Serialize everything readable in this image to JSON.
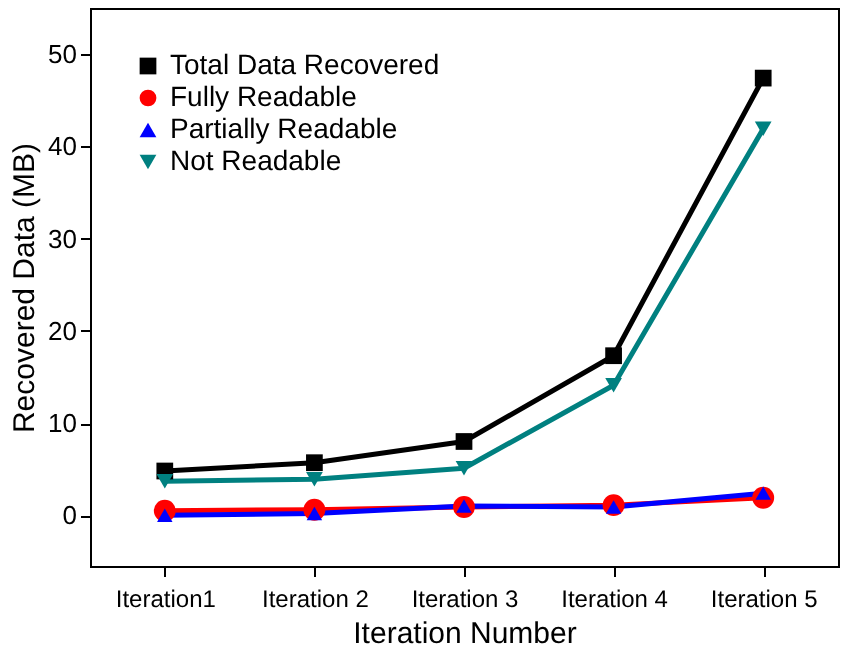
{
  "chart_data": {
    "type": "line",
    "xlabel": "Iteration Number",
    "ylabel": "Recovered Data (MB)",
    "categories": [
      "Iteration1",
      "Iteration 2",
      "Iteration 3",
      "Iteration 4",
      "Iteration 5"
    ],
    "series": [
      {
        "name": "Total Data Recovered",
        "color": "#000000",
        "marker": "square",
        "values": [
          4.8,
          5.7,
          8.0,
          17.3,
          47.4
        ]
      },
      {
        "name": "Fully Readable",
        "color": "#ff0000",
        "marker": "circle",
        "values": [
          0.5,
          0.6,
          0.9,
          1.1,
          1.9
        ]
      },
      {
        "name": "Partially Readable",
        "color": "#0000ff",
        "marker": "triangle",
        "values": [
          0.0,
          0.2,
          1.0,
          0.9,
          2.4
        ]
      },
      {
        "name": "Not Readable",
        "color": "#008080",
        "marker": "triangle-down",
        "values": [
          3.7,
          3.9,
          5.1,
          14.1,
          41.9
        ]
      }
    ],
    "ylim": [
      -5.5,
      55
    ],
    "yticks": [
      0,
      10,
      20,
      30,
      40,
      50
    ],
    "grid": false,
    "legend": "top left",
    "line_style": "solid"
  }
}
